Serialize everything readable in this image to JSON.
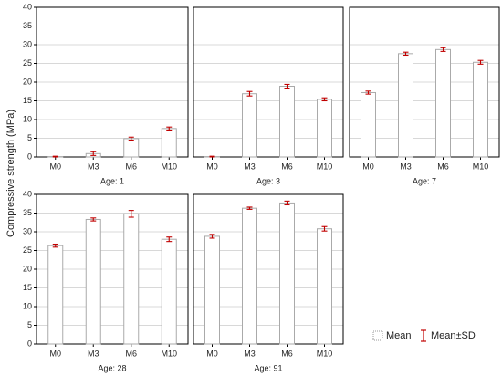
{
  "ylabel": "Compressive strength (MPa)",
  "legend": [
    "Mean",
    "Mean±SD"
  ],
  "chart_data": [
    {
      "type": "bar",
      "title": "Age: 1",
      "categories": [
        "M0",
        "M3",
        "M6",
        "M10"
      ],
      "values": [
        0.1,
        0.9,
        4.9,
        7.6
      ],
      "errors": [
        0.1,
        0.5,
        0.4,
        0.4
      ],
      "ylim": [
        0,
        40
      ],
      "yticks": [
        0,
        5,
        10,
        15,
        20,
        25,
        30,
        35,
        40
      ],
      "grid": true,
      "color": "#ffffff",
      "error_color": "#c00000"
    },
    {
      "type": "bar",
      "title": "Age: 3",
      "categories": [
        "M0",
        "M3",
        "M6",
        "M10"
      ],
      "values": [
        0.1,
        16.9,
        18.9,
        15.4
      ],
      "errors": [
        0.1,
        0.6,
        0.5,
        0.4
      ],
      "ylim": [
        0,
        40
      ],
      "yticks": [
        0,
        5,
        10,
        15,
        20,
        25,
        30,
        35,
        40
      ],
      "grid": true,
      "color": "#ffffff",
      "error_color": "#c00000"
    },
    {
      "type": "bar",
      "title": "Age: 7",
      "categories": [
        "M0",
        "M3",
        "M6",
        "M10"
      ],
      "values": [
        17.2,
        27.6,
        28.7,
        25.3
      ],
      "errors": [
        0.4,
        0.4,
        0.5,
        0.5
      ],
      "ylim": [
        0,
        40
      ],
      "yticks": [
        0,
        5,
        10,
        15,
        20,
        25,
        30,
        35,
        40
      ],
      "grid": true,
      "color": "#ffffff",
      "error_color": "#c00000"
    },
    {
      "type": "bar",
      "title": "Age: 28",
      "categories": [
        "M0",
        "M3",
        "M6",
        "M10"
      ],
      "values": [
        26.3,
        33.3,
        34.8,
        28.0
      ],
      "errors": [
        0.4,
        0.4,
        0.9,
        0.6
      ],
      "ylim": [
        0,
        40
      ],
      "yticks": [
        0,
        5,
        10,
        15,
        20,
        25,
        30,
        35,
        40
      ],
      "grid": true,
      "color": "#ffffff",
      "error_color": "#c00000"
    },
    {
      "type": "bar",
      "title": "Age: 91",
      "categories": [
        "M0",
        "M3",
        "M6",
        "M10"
      ],
      "values": [
        28.8,
        36.3,
        37.7,
        30.8
      ],
      "errors": [
        0.5,
        0.3,
        0.5,
        0.6
      ],
      "ylim": [
        0,
        40
      ],
      "yticks": [
        0,
        5,
        10,
        15,
        20,
        25,
        30,
        35,
        40
      ],
      "grid": true,
      "color": "#ffffff",
      "error_color": "#c00000"
    }
  ]
}
